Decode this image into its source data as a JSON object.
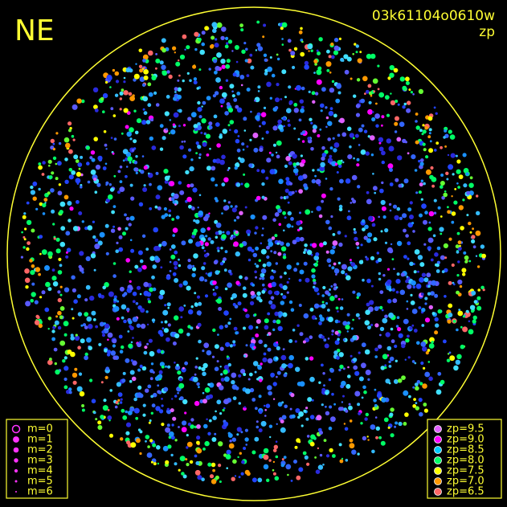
{
  "direction": "NE",
  "frame_id": "03k61104o0610w",
  "mode": "zp",
  "m_legend": {
    "color": "#ff33ff",
    "items": [
      "m=0",
      "m=1",
      "m=2",
      "m=3",
      "m=4",
      "m=5",
      "m=6"
    ]
  },
  "zp_legend": {
    "items": [
      {
        "label": "zp=9.5",
        "color": "#e060ff"
      },
      {
        "label": "zp=9.0",
        "color": "#ff00ff"
      },
      {
        "label": "zp=8.5",
        "color": "#00ccff"
      },
      {
        "label": "zp=8.0",
        "color": "#00ff66"
      },
      {
        "label": "zp=7.5",
        "color": "#ffff00"
      },
      {
        "label": "zp=7.0",
        "color": "#ff9900"
      },
      {
        "label": "zp=6.5",
        "color": "#ff6666"
      }
    ]
  }
}
